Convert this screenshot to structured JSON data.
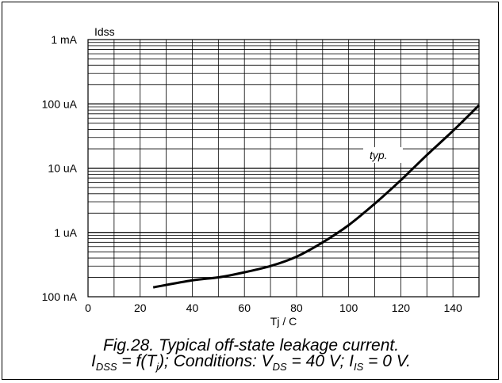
{
  "chart_data": {
    "type": "line",
    "title": "",
    "xlabel": "Tj / C",
    "ylabel": "Idss",
    "xlim": [
      0,
      150
    ],
    "x_ticks": [
      0,
      20,
      40,
      60,
      80,
      100,
      120,
      140
    ],
    "ylim_log": [
      1e-07,
      0.001
    ],
    "y_scale": "log",
    "y_ticks": [
      {
        "value": 1e-07,
        "label": "100 nA"
      },
      {
        "value": 1e-06,
        "label": "1 uA"
      },
      {
        "value": 1e-05,
        "label": "10 uA"
      },
      {
        "value": 0.0001,
        "label": "100 uA"
      },
      {
        "value": 0.001,
        "label": "1 mA"
      }
    ],
    "grid": true,
    "series": [
      {
        "name": "typ.",
        "x": [
          25,
          40,
          50,
          60,
          70,
          80,
          90,
          100,
          110,
          120,
          130,
          140,
          150
        ],
        "y": [
          1.4e-07,
          1.8e-07,
          2e-07,
          2.4e-07,
          3e-07,
          4.2e-07,
          7e-07,
          1.3e-06,
          2.8e-06,
          6.5e-06,
          1.6e-05,
          3.8e-05,
          9.5e-05
        ]
      }
    ]
  },
  "caption": {
    "line1": "Fig.28.  Typical off-state leakage current.",
    "l2_a": "I",
    "l2_a_sub": "DSS",
    "l2_b": " = f(T",
    "l2_b_sub": "j",
    "l2_c": "); Conditions: V",
    "l2_c_sub": "DS",
    "l2_d": " = 40 V; I",
    "l2_d_sub": "IS",
    "l2_e": " = 0 V."
  }
}
